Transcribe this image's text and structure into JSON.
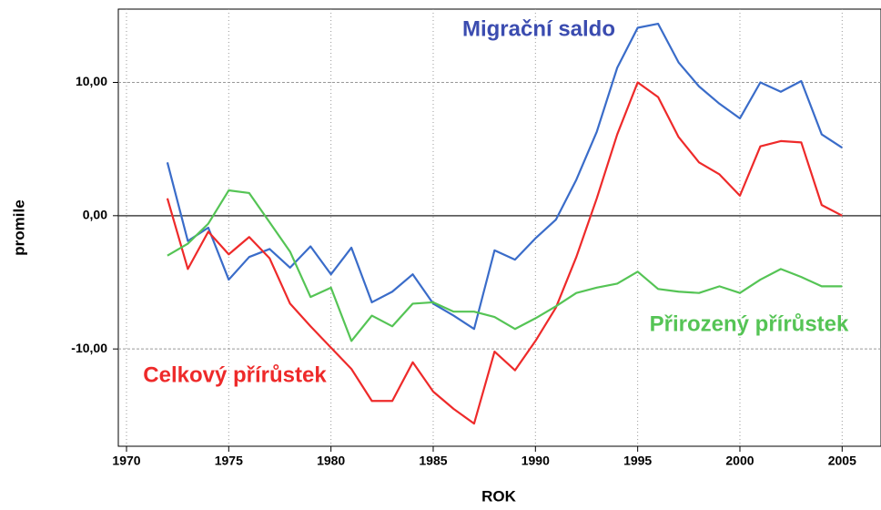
{
  "chart_data": {
    "type": "line",
    "x_label": "ROK",
    "y_label": "promile",
    "x": [
      1972,
      1973,
      1974,
      1975,
      1976,
      1977,
      1978,
      1979,
      1980,
      1981,
      1982,
      1983,
      1984,
      1985,
      1986,
      1987,
      1988,
      1989,
      1990,
      1991,
      1992,
      1993,
      1994,
      1995,
      1996,
      1997,
      1998,
      1999,
      2000,
      2001,
      2002,
      2003,
      2004,
      2005
    ],
    "series": [
      {
        "name": "Migrační saldo",
        "color": "#3a6cc9",
        "values": [
          4.0,
          -1.9,
          -0.9,
          -4.8,
          -3.1,
          -2.5,
          -3.9,
          -2.3,
          -4.4,
          -2.4,
          -6.5,
          -5.7,
          -4.4,
          -6.6,
          -7.5,
          -8.5,
          -2.6,
          -3.3,
          -1.7,
          -0.3,
          2.7,
          6.3,
          11.1,
          14.1,
          14.4,
          11.5,
          9.7,
          8.4,
          7.3,
          10.0,
          9.3,
          10.1,
          6.1,
          5.1
        ]
      },
      {
        "name": "Celkový přírůstek",
        "color": "#ee2a2a",
        "values": [
          1.3,
          -4.0,
          -1.2,
          -2.9,
          -1.6,
          -3.2,
          -6.6,
          -8.3,
          -9.9,
          -11.5,
          -13.9,
          -13.9,
          -11.0,
          -13.2,
          -14.5,
          -15.6,
          -10.2,
          -11.6,
          -9.4,
          -6.9,
          -3.1,
          1.3,
          6.1,
          10.0,
          8.9,
          5.9,
          4.0,
          3.1,
          1.5,
          5.2,
          5.6,
          5.5,
          0.8,
          0.0
        ]
      },
      {
        "name": "Přirozený přírůstek",
        "color": "#55c455",
        "values": [
          -3.0,
          -2.1,
          -0.6,
          1.9,
          1.7,
          -0.5,
          -2.7,
          -6.1,
          -5.4,
          -9.4,
          -7.5,
          -8.3,
          -6.6,
          -6.5,
          -7.2,
          -7.2,
          -7.6,
          -8.5,
          -7.7,
          -6.8,
          -5.8,
          -5.4,
          -5.1,
          -4.2,
          -5.5,
          -5.7,
          -5.8,
          -5.3,
          -5.8,
          -4.8,
          -4.0,
          -4.6,
          -5.3,
          -5.3
        ]
      }
    ],
    "xlim": [
      1969.6,
      2006.9
    ],
    "ylim": [
      -17.3,
      15.5
    ],
    "xticks": [
      1970,
      1975,
      1980,
      1985,
      1990,
      1995,
      2000,
      2005
    ],
    "yticks": [
      {
        "value": -10,
        "label": "-10,00"
      },
      {
        "value": 0,
        "label": "0,00"
      },
      {
        "value": 10,
        "label": "10,00"
      }
    ],
    "grid": true
  }
}
